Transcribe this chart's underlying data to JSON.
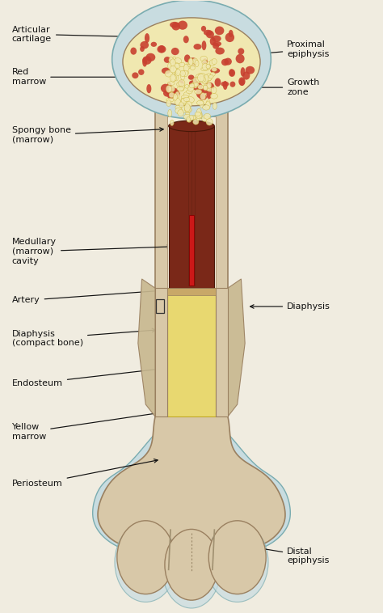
{
  "bg_color": "#f0ece0",
  "bone_color": "#d8c8a8",
  "bone_edge": "#9a8060",
  "cart_color": "#c8dce0",
  "cart_edge": "#7aacb0",
  "spongy_color": "#f0e8b0",
  "red_dot_color": "#c84030",
  "dark_marrow_color": "#7a2818",
  "artery_color": "#cc1818",
  "yellow_marrow_color": "#e8d870",
  "yellow_marrow_edge": "#c0a828",
  "endosteum_color": "#c8a868",
  "periosteum_color": "#c8b890",
  "font_size": 8,
  "text_color": "#111111",
  "labels_left": [
    {
      "text": "Articular\ncartilage",
      "xt": 0.03,
      "yt": 0.945,
      "xa": 0.4,
      "ya": 0.94
    },
    {
      "text": "Red\nmarrow",
      "xt": 0.03,
      "yt": 0.875,
      "xa": 0.385,
      "ya": 0.875
    },
    {
      "text": "Spongy bone\n(marrow)",
      "xt": 0.03,
      "yt": 0.78,
      "xa": 0.435,
      "ya": 0.79
    },
    {
      "text": "Medullary\n(marrow)\ncavity",
      "xt": 0.03,
      "yt": 0.59,
      "xa": 0.455,
      "ya": 0.598
    },
    {
      "text": "Artery",
      "xt": 0.03,
      "yt": 0.51,
      "xa": 0.465,
      "ya": 0.528
    },
    {
      "text": "Diaphysis\n(compact bone)",
      "xt": 0.03,
      "yt": 0.448,
      "xa": 0.415,
      "ya": 0.462
    },
    {
      "text": "Endosteum",
      "xt": 0.03,
      "yt": 0.375,
      "xa": 0.445,
      "ya": 0.4
    },
    {
      "text": "Yellow\nmarrow",
      "xt": 0.03,
      "yt": 0.295,
      "xa": 0.435,
      "ya": 0.328
    },
    {
      "text": "Periosteum",
      "xt": 0.03,
      "yt": 0.21,
      "xa": 0.42,
      "ya": 0.25
    }
  ],
  "labels_right": [
    {
      "text": "Proximal\nepiphysis",
      "xt": 0.75,
      "yt": 0.92,
      "xa": 0.62,
      "ya": 0.91
    },
    {
      "text": "Growth\nzone",
      "xt": 0.75,
      "yt": 0.858,
      "xa": 0.62,
      "ya": 0.858
    },
    {
      "text": "Diaphysis",
      "xt": 0.75,
      "yt": 0.5,
      "xa": 0.645,
      "ya": 0.5
    },
    {
      "text": "Distal\nepiphysis",
      "xt": 0.75,
      "yt": 0.092,
      "xa": 0.63,
      "ya": 0.11
    }
  ]
}
